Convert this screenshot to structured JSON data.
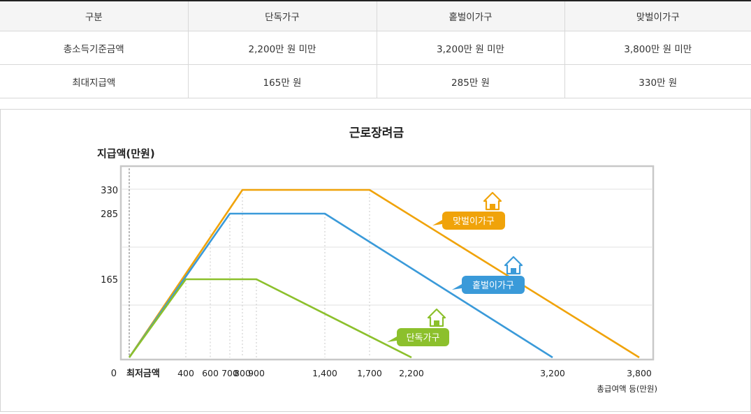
{
  "table": {
    "headers": [
      "구분",
      "단독가구",
      "홑벌이가구",
      "맞벌이가구"
    ],
    "rows": [
      [
        "총소득기준금액",
        "2,200만 원 미만",
        "3,200만 원 미만",
        "3,800만 원 미만"
      ],
      [
        "최대지급액",
        "165만 원",
        "285만 원",
        "330만 원"
      ]
    ]
  },
  "chart_data": {
    "type": "line",
    "title": "근로장려금",
    "ylabel": "지급액(만원)",
    "xlabel": "총급여액 등(만원)",
    "x_min_label": "최저금액",
    "y_ticks": [
      "0",
      "165",
      "285",
      "330"
    ],
    "x_ticks": [
      "400",
      "600",
      "700",
      "800",
      "900",
      "1,400",
      "1,700",
      "2,200",
      "3,200",
      "3,800"
    ],
    "grid": true,
    "series": [
      {
        "name": "맞벌이가구",
        "color": "#f0a30a",
        "points": [
          [
            0,
            0
          ],
          [
            800,
            330
          ],
          [
            1700,
            330
          ],
          [
            3800,
            0
          ]
        ]
      },
      {
        "name": "홑벌이가구",
        "color": "#3a9ad9",
        "points": [
          [
            0,
            0
          ],
          [
            700,
            285
          ],
          [
            1400,
            285
          ],
          [
            3200,
            0
          ]
        ]
      },
      {
        "name": "단독가구",
        "color": "#8cc02c",
        "points": [
          [
            0,
            0
          ],
          [
            400,
            165
          ],
          [
            900,
            165
          ],
          [
            2200,
            0
          ]
        ]
      }
    ]
  }
}
